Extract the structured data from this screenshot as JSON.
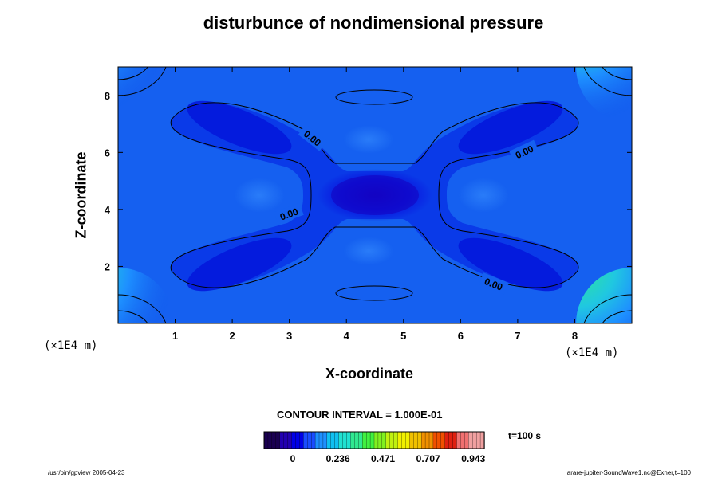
{
  "chart_data": {
    "type": "heatmap",
    "title": "disturbunce of nondimensional pressure",
    "xlabel": "X-coordinate",
    "ylabel": "Z-coordinate",
    "x_unit": "(×1E4 m)",
    "y_unit": "(×1E4 m)",
    "xlim": [
      0,
      9
    ],
    "ylim": [
      0,
      9
    ],
    "x_ticks": [
      1,
      2,
      3,
      4,
      5,
      6,
      7,
      8
    ],
    "y_ticks": [
      2,
      4,
      6,
      8
    ],
    "contour_interval_text": "CONTOUR INTERVAL = 1.000E-01",
    "contour_level_labels": [
      "0.00",
      "0.00",
      "0.00",
      "0.00"
    ],
    "colorbar": {
      "ticks": [
        "0",
        "0.236",
        "0.471",
        "0.707",
        "0.943"
      ],
      "range": [
        -0.15,
        1.0
      ],
      "colors": [
        "#1a0050",
        "#2200b0",
        "#0000e6",
        "#1a4cff",
        "#1e90ff",
        "#10c0f0",
        "#20e0d0",
        "#30e890",
        "#40f040",
        "#80f020",
        "#c0f010",
        "#f0f000",
        "#f0c000",
        "#f09000",
        "#f05000",
        "#e02010",
        "#f07070",
        "#f0a0a0"
      ]
    },
    "time_label": "t=100 s",
    "field_features": [
      {
        "kind": "minimum",
        "x": 4.5,
        "z": 4.5
      },
      {
        "kind": "maximum",
        "x": 0,
        "z": 0
      },
      {
        "kind": "maximum",
        "x": 9,
        "z": 0
      },
      {
        "kind": "maximum",
        "x": 0,
        "z": 9
      },
      {
        "kind": "maximum",
        "x": 9,
        "z": 9
      }
    ]
  },
  "footer": {
    "left": "/usr/bin/gpview 2005-04-23",
    "right": "arare-jupiter-SoundWave1.nc@Exner,t=100"
  }
}
